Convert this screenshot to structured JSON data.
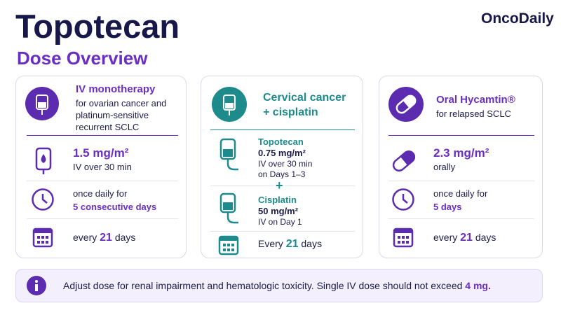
{
  "header": {
    "title": "Topotecan",
    "subtitle": "Dose Overview",
    "brand": "OncoDaily"
  },
  "cards": [
    {
      "title": "IV monotherapy",
      "description": "for ovarian cancer and platinum-sensitive recurrent SCLC",
      "dose": {
        "amount": "1.5 mg/m²",
        "route": "IV over 30 min"
      },
      "frequency": {
        "text": "once daily for",
        "emphasis": "5 consecutive days"
      },
      "cycle": {
        "before": "every",
        "number": "21",
        "after": "days"
      }
    },
    {
      "title": "Cervical cancer + cisplatin",
      "drugs": [
        {
          "name": "Topotecan",
          "amount": "0.75 mg/m²",
          "details": [
            "IV over 30 min",
            "on Days 1–3"
          ]
        },
        {
          "name": "Cisplatin",
          "amount": "50 mg/m²",
          "details": [
            "IV on Day 1"
          ]
        }
      ],
      "plus": "+",
      "cycle": {
        "before": "Every",
        "number": "21",
        "after": "days"
      }
    },
    {
      "title": "Oral Hycamtin®",
      "description": "for relapsed SCLC",
      "dose": {
        "amount": "2.3 mg/m²",
        "route": "orally"
      },
      "frequency": {
        "text": "once daily for",
        "emphasis": "5 days"
      },
      "cycle": {
        "before": "every",
        "number": "21",
        "after": "days"
      }
    }
  ],
  "note": {
    "text": "Adjust dose for renal impairment and hematologic toxicity. Single IV dose should not exceed",
    "emphasis": "4 mg."
  }
}
